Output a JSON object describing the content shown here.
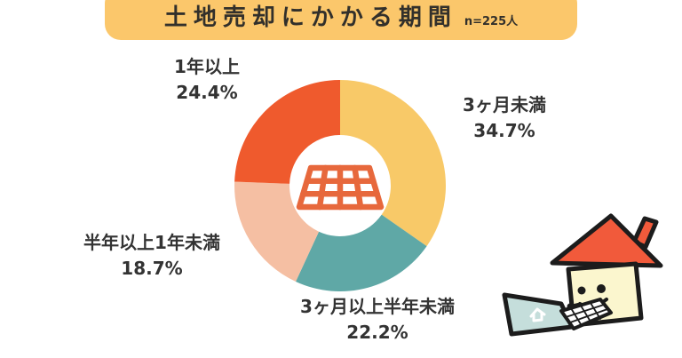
{
  "header": {
    "title": "土地売却にかかる期間",
    "sample_label": "n=225人",
    "banner_color": "#FBC76B",
    "text_color": "#32302B"
  },
  "chart_data": {
    "type": "pie",
    "subtype": "donut",
    "title": "土地売却にかかる期間",
    "sample_size": "n=225人",
    "start_angle_deg": 0,
    "direction": "clockwise",
    "outer_radius_px": 119,
    "inner_radius_px": 57,
    "legend_position": "labels-around-chart",
    "center_icon": "land-plot-grid-icon",
    "center_icon_color": "#E7683C",
    "slices": [
      {
        "label": "3ヶ月未満",
        "value": 34.7,
        "percent_label": "34.7%",
        "color": "#F8C968"
      },
      {
        "label": "3ヶ月以上半年未満",
        "value": 22.2,
        "percent_label": "22.2%",
        "color": "#5FA8A6"
      },
      {
        "label": "半年以上1年未満",
        "value": 18.7,
        "percent_label": "18.7%",
        "color": "#F5BFA3"
      },
      {
        "label": "1年以上",
        "value": 24.4,
        "percent_label": "24.4%",
        "color": "#EF5A2D"
      }
    ]
  },
  "mascot": {
    "roof_color": "#F15A3B",
    "body_color": "#FBF6CE",
    "laptop_color": "#C5DEDB",
    "outline_color": "#1C1C1C"
  }
}
